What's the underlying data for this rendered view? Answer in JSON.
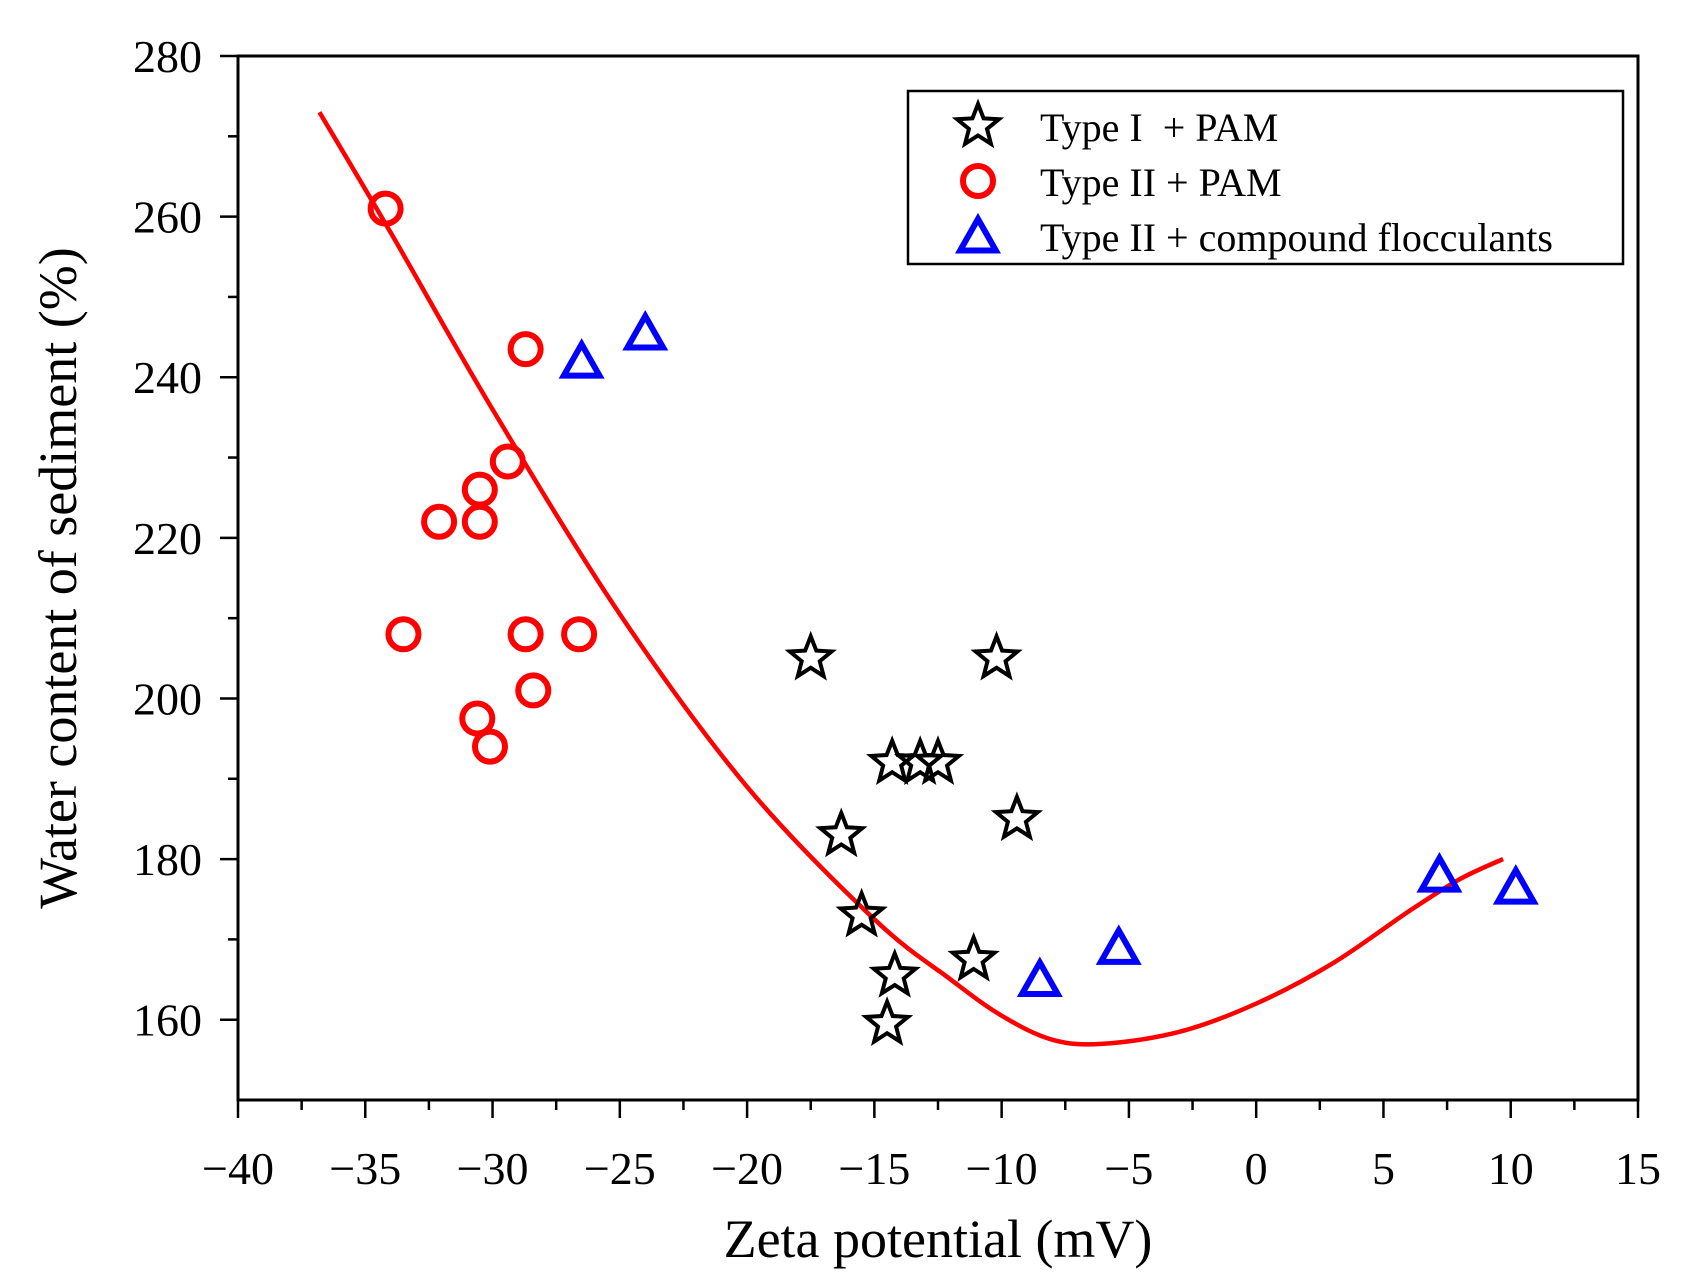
{
  "chart_data": {
    "type": "scatter",
    "title": "",
    "xlabel": "Zeta potential (mV)",
    "ylabel": "Water content of sediment (%)",
    "xlim": [
      -40,
      15
    ],
    "ylim": [
      150,
      280
    ],
    "x_ticks": [
      -40,
      -35,
      -30,
      -25,
      -20,
      -15,
      -10,
      -5,
      0,
      5,
      10,
      15
    ],
    "x_tick_labels": [
      "−40",
      "−35",
      "−30",
      "−25",
      "−20",
      "−15",
      "−10",
      "−5",
      "0",
      "5",
      "10",
      "15"
    ],
    "y_ticks": [
      160,
      180,
      200,
      220,
      240,
      260,
      280
    ],
    "y_tick_labels": [
      "160",
      "180",
      "200",
      "220",
      "240",
      "260",
      "280"
    ],
    "legend_position": "top-right",
    "series": [
      {
        "name": "Type I  + PAM",
        "marker": "star",
        "color": "#000000",
        "points": [
          {
            "x": -17.5,
            "y": 205
          },
          {
            "x": -10.2,
            "y": 205
          },
          {
            "x": -14.3,
            "y": 192
          },
          {
            "x": -13.2,
            "y": 192
          },
          {
            "x": -12.5,
            "y": 192
          },
          {
            "x": -9.4,
            "y": 185
          },
          {
            "x": -16.3,
            "y": 183
          },
          {
            "x": -15.5,
            "y": 173
          },
          {
            "x": -11.1,
            "y": 167.5
          },
          {
            "x": -14.2,
            "y": 165.5
          },
          {
            "x": -14.5,
            "y": 159.5
          }
        ]
      },
      {
        "name": "Type II + PAM",
        "marker": "circle",
        "color": "#ff0000",
        "points": [
          {
            "x": -34.2,
            "y": 261
          },
          {
            "x": -28.7,
            "y": 243.5
          },
          {
            "x": -29.4,
            "y": 229.5
          },
          {
            "x": -30.5,
            "y": 226
          },
          {
            "x": -32.1,
            "y": 222
          },
          {
            "x": -30.5,
            "y": 222
          },
          {
            "x": -33.5,
            "y": 208
          },
          {
            "x": -28.7,
            "y": 208
          },
          {
            "x": -26.6,
            "y": 208
          },
          {
            "x": -28.4,
            "y": 201
          },
          {
            "x": -30.6,
            "y": 197.5
          },
          {
            "x": -30.1,
            "y": 194
          }
        ]
      },
      {
        "name": "Type II + compound flocculants",
        "marker": "triangle",
        "color": "#0000ff",
        "points": [
          {
            "x": -26.5,
            "y": 242
          },
          {
            "x": -24.0,
            "y": 245.5
          },
          {
            "x": -8.5,
            "y": 165
          },
          {
            "x": -5.4,
            "y": 169
          },
          {
            "x": 7.2,
            "y": 178
          },
          {
            "x": 10.2,
            "y": 176.5
          }
        ]
      }
    ],
    "fit_curve": {
      "color": "#ff0000",
      "points": [
        {
          "x": -36.8,
          "y": 273
        },
        {
          "x": -34,
          "y": 258
        },
        {
          "x": -30,
          "y": 236
        },
        {
          "x": -25,
          "y": 210.5
        },
        {
          "x": -20,
          "y": 189
        },
        {
          "x": -15,
          "y": 172.5
        },
        {
          "x": -12,
          "y": 165
        },
        {
          "x": -10,
          "y": 160.5
        },
        {
          "x": -8,
          "y": 157.5
        },
        {
          "x": -6,
          "y": 157
        },
        {
          "x": -3,
          "y": 158.5
        },
        {
          "x": 0,
          "y": 162
        },
        {
          "x": 3,
          "y": 167
        },
        {
          "x": 6,
          "y": 173.5
        },
        {
          "x": 8,
          "y": 177.5
        },
        {
          "x": 9.7,
          "y": 180
        }
      ]
    }
  }
}
